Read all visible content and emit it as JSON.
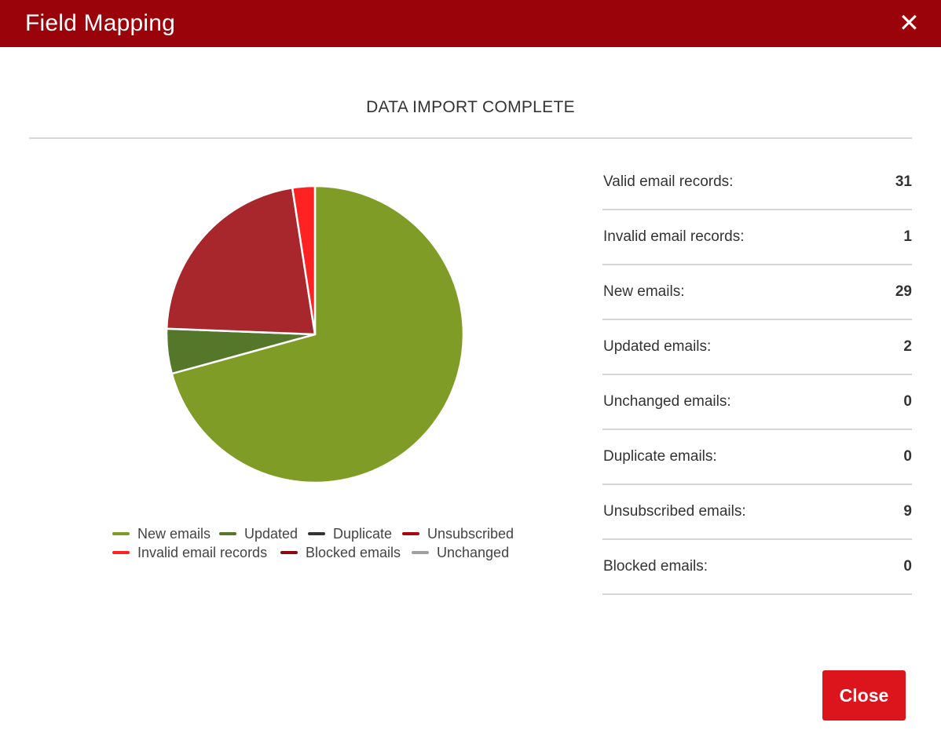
{
  "window": {
    "title": "Field Mapping",
    "close_icon": "close-icon"
  },
  "heading": "DATA IMPORT COMPLETE",
  "stats": [
    {
      "label": "Valid email records:",
      "value": "31"
    },
    {
      "label": "Invalid email records:",
      "value": "1"
    },
    {
      "label": "New emails:",
      "value": "29"
    },
    {
      "label": "Updated emails:",
      "value": "2"
    },
    {
      "label": "Unchanged emails:",
      "value": "0"
    },
    {
      "label": "Duplicate emails:",
      "value": "0"
    },
    {
      "label": "Unsubscribed emails:",
      "value": "9"
    },
    {
      "label": "Blocked emails:",
      "value": "0"
    }
  ],
  "legend": [
    {
      "label": "New emails",
      "color": "#7f9c27"
    },
    {
      "label": "Updated",
      "color": "#54772a"
    },
    {
      "label": "Duplicate",
      "color": "#333333"
    },
    {
      "label": "Unsubscribed",
      "color": "#a6040f"
    },
    {
      "label": "Invalid email records",
      "color": "#ff2222"
    },
    {
      "label": "Blocked emails",
      "color": "#8b0a0f"
    },
    {
      "label": "Unchanged",
      "color": "#a0a0a0"
    }
  ],
  "chart_data": {
    "type": "pie",
    "title": "",
    "slices": [
      {
        "name": "New emails",
        "value": 29,
        "color": "#7f9c27"
      },
      {
        "name": "Updated",
        "value": 2,
        "color": "#54772a"
      },
      {
        "name": "Duplicate",
        "value": 0,
        "color": "#333333"
      },
      {
        "name": "Unsubscribed",
        "value": 9,
        "color": "#a8272d"
      },
      {
        "name": "Invalid email records",
        "value": 1,
        "color": "#ff2222"
      },
      {
        "name": "Blocked emails",
        "value": 0,
        "color": "#8b0a0f"
      },
      {
        "name": "Unchanged",
        "value": 0,
        "color": "#a0a0a0"
      }
    ],
    "legend_position": "bottom"
  },
  "buttons": {
    "close_label": "Close"
  }
}
